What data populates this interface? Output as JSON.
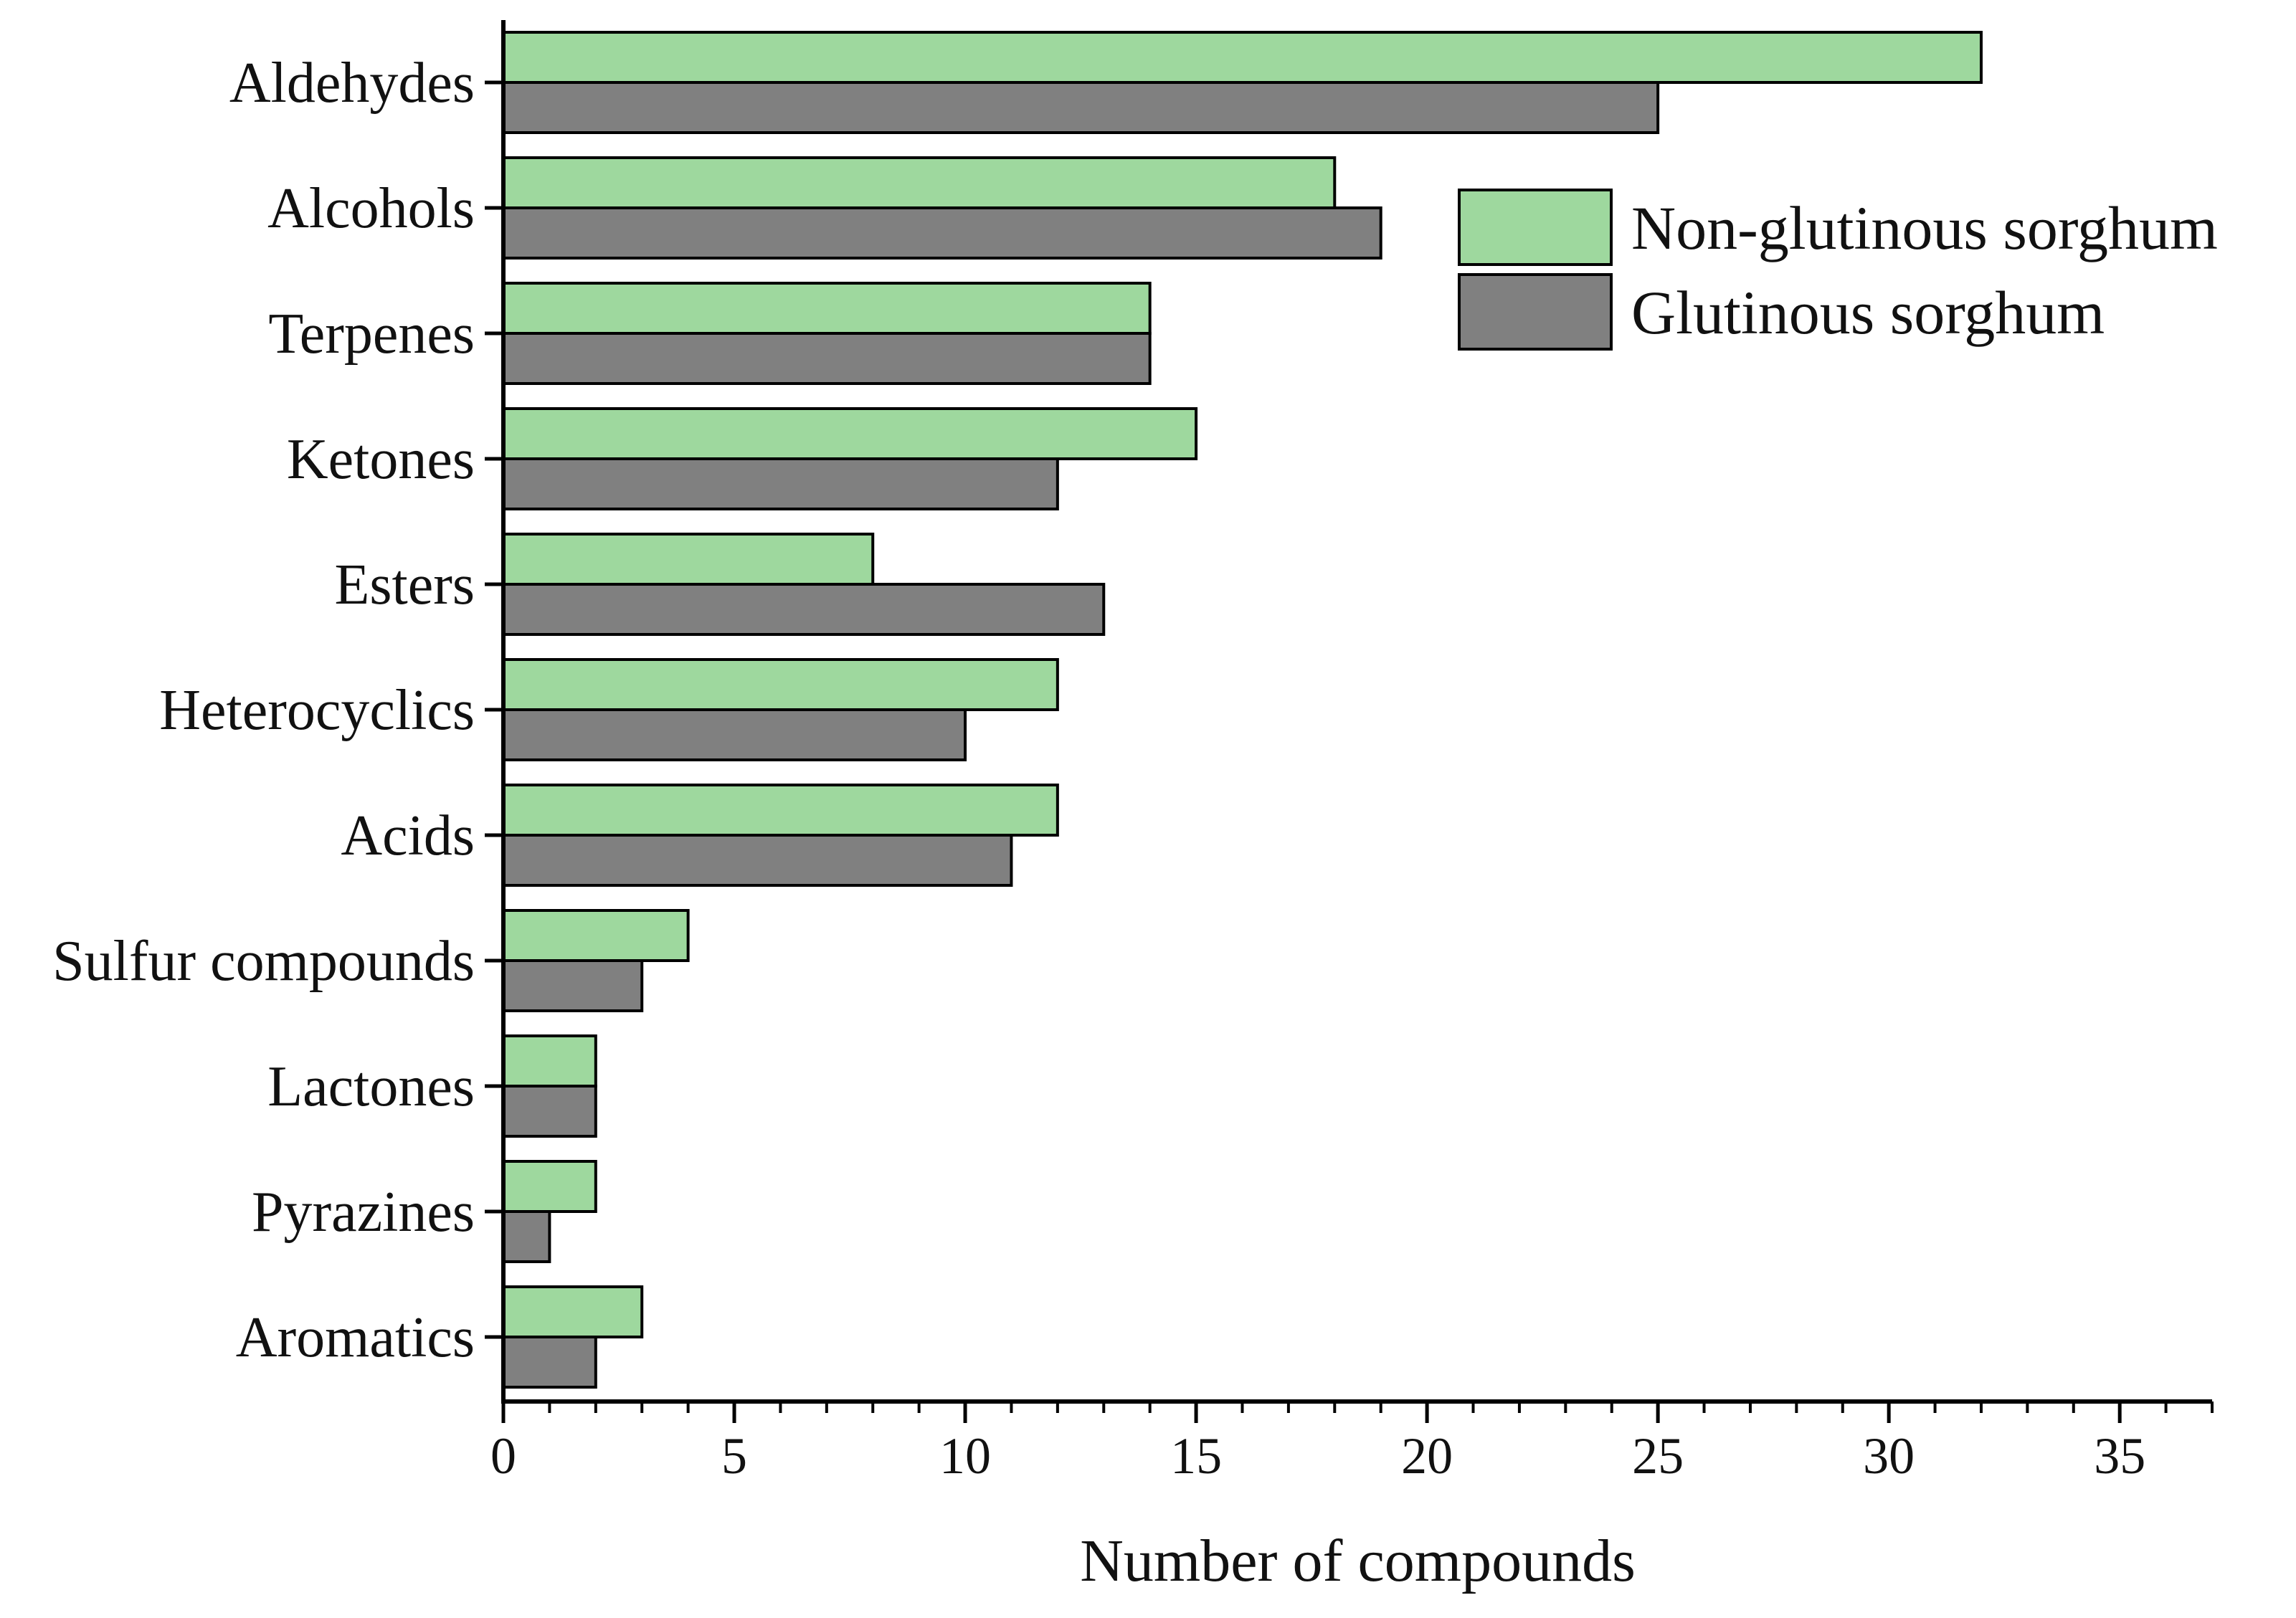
{
  "chart_data": {
    "type": "bar",
    "orientation": "horizontal",
    "categories": [
      "Aldehydes",
      "Alcohols",
      "Terpenes",
      "Ketones",
      "Esters",
      "Heterocyclics",
      "Acids",
      "Sulfur compounds",
      "Lactones",
      "Pyrazines",
      "Aromatics"
    ],
    "series": [
      {
        "name": "Non-glutinous sorghum",
        "color": "#9ed89e",
        "values": [
          32,
          18,
          14,
          15,
          8,
          12,
          12,
          4,
          2,
          2,
          3
        ]
      },
      {
        "name": "Glutinous sorghum",
        "color": "#808080",
        "values": [
          25,
          19,
          14,
          12,
          13,
          10,
          11,
          3,
          2,
          1,
          2
        ]
      }
    ],
    "title": "",
    "xlabel": "Number of compounds",
    "ylabel": "",
    "xlim": [
      0,
      37
    ],
    "xticks": [
      0,
      5,
      10,
      15,
      20,
      25,
      30,
      35
    ],
    "minor_tick_step": 1,
    "grid": false,
    "legend_position": "top-right"
  }
}
